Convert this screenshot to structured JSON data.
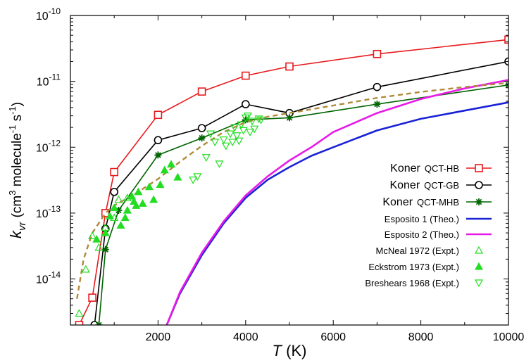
{
  "chart_data": {
    "type": "line",
    "title": "",
    "xlabel": "T (K)",
    "ylabel": "k_vr (cm3 molecule-1 s-1)",
    "xlabel_parts": {
      "symbol": "T",
      "unit": "(K)"
    },
    "ylabel_parts": {
      "symbol": "k",
      "subscript": "vr",
      "unit_open": "(cm",
      "sup1": "3",
      "mid": " molecule",
      "sup2": "-1",
      "mid2": " s",
      "sup3": "-1",
      "unit_close": ")"
    },
    "xlim": [
      0,
      10000
    ],
    "ylim": [
      2e-15,
      1e-10
    ],
    "yscale": "log",
    "grid": false,
    "legend_position": "right",
    "x_ticks": [
      2000,
      4000,
      6000,
      8000,
      10000
    ],
    "x_tick_labels": [
      "2000",
      "4000",
      "6000",
      "8000",
      "10000"
    ],
    "y_tick_labels": [
      {
        "value": 1e-10,
        "mantissa": "10",
        "exponent": "-10"
      },
      {
        "value": 1e-11,
        "mantissa": "10",
        "exponent": "-11"
      },
      {
        "value": 1e-12,
        "mantissa": "10",
        "exponent": "-12"
      },
      {
        "value": 1e-13,
        "mantissa": "10",
        "exponent": "-13"
      },
      {
        "value": 1e-14,
        "mantissa": "10",
        "exponent": "-14"
      }
    ],
    "series": [
      {
        "name": "Koner QCT-HB",
        "name_main": "Koner",
        "name_tag": "QCT-HB",
        "kind": "line-marker",
        "color": "#e8191c",
        "marker": "open-square",
        "x": [
          200,
          500,
          800,
          1000,
          2000,
          3000,
          4000,
          5000,
          7000,
          10000
        ],
        "y": [
          2e-15,
          5.2e-15,
          1e-13,
          4.2e-13,
          3.1e-12,
          7e-12,
          1.22e-11,
          1.68e-11,
          2.6e-11,
          4.3e-11
        ]
      },
      {
        "name": "Koner QCT-GB",
        "name_main": "Koner",
        "name_tag": "QCT-GB",
        "kind": "line-marker",
        "color": "#000000",
        "marker": "open-circle",
        "x": [
          550,
          800,
          1000,
          2000,
          3000,
          4000,
          5000,
          7000,
          10000
        ],
        "y": [
          2e-15,
          5.8e-14,
          2.1e-13,
          1.28e-12,
          1.95e-12,
          4.5e-12,
          3.3e-12,
          8.2e-12,
          2e-11
        ]
      },
      {
        "name": "Koner QCT-MHB",
        "name_main": "Koner",
        "name_tag": "QCT-MHB",
        "kind": "line-marker",
        "color": "#006400",
        "marker": "asterisk",
        "x": [
          650,
          800,
          1100,
          2000,
          3000,
          4000,
          5000,
          7000,
          10000
        ],
        "y": [
          2e-15,
          2.8e-14,
          1.1e-13,
          7.6e-13,
          1.38e-12,
          2.6e-12,
          2.8e-12,
          4.5e-12,
          8.8e-12
        ]
      },
      {
        "name": "Esposito 1 (Theo.)",
        "kind": "line",
        "color": "#1a22d6",
        "marker": "none",
        "x": [
          2200,
          2500,
          3000,
          3500,
          4000,
          4500,
          5000,
          5500,
          6000,
          7000,
          8000,
          9000,
          10000
        ],
        "y": [
          2e-15,
          6e-15,
          2.3e-14,
          7e-14,
          1.7e-13,
          3.2e-13,
          5e-13,
          7.4e-13,
          1e-12,
          1.8e-12,
          2.7e-12,
          3.6e-12,
          4.8e-12
        ]
      },
      {
        "name": "Esposito 2 (Theo.)",
        "kind": "line",
        "color": "#e81ae8",
        "marker": "none",
        "x": [
          2200,
          2500,
          3000,
          3500,
          4000,
          4500,
          5000,
          5500,
          6000,
          7000,
          8000,
          9000,
          10000
        ],
        "y": [
          2e-15,
          6.3e-15,
          2.5e-14,
          7.5e-14,
          1.85e-13,
          3.6e-13,
          6.3e-13,
          1e-12,
          1.7e-12,
          3.3e-12,
          5.4e-12,
          7.8e-12,
          1.05e-11
        ]
      },
      {
        "name": "",
        "kind": "dashed",
        "color": "#b08a3a",
        "marker": "none",
        "x": [
          150,
          300,
          500,
          800,
          1000,
          1500,
          2000,
          2500,
          3000,
          3500,
          4000,
          4500,
          5000,
          6000,
          7000,
          8000,
          9000,
          10000
        ],
        "y": [
          5e-15,
          2e-14,
          5e-14,
          1e-13,
          1.3e-13,
          2e-13,
          3.3e-13,
          6e-13,
          1.05e-12,
          1.7e-12,
          2.4e-12,
          2.9e-12,
          3.3e-12,
          4.3e-12,
          5.6e-12,
          6.9e-12,
          8.2e-12,
          9.5e-12
        ]
      },
      {
        "name": "McNeal 1972 (Expt.)",
        "kind": "scatter",
        "color": "#22dd22",
        "marker": "open-triangle-up",
        "x": [
          200,
          350,
          500,
          650,
          800,
          1000,
          1100,
          1300
        ],
        "y": [
          3e-15,
          1.4e-14,
          4.5e-14,
          3e-14,
          6e-14,
          8.5e-14,
          1.6e-13,
          1.7e-13
        ]
      },
      {
        "name": "Eckstrom 1973 (Expt.)",
        "kind": "scatter",
        "color": "#22dd22",
        "marker": "filled-triangle-up",
        "x": [
          600,
          800,
          900,
          1000,
          1150,
          1250,
          1300,
          1400,
          1450,
          1500,
          1550,
          1650,
          1800,
          1900,
          2050,
          2150,
          2300,
          2450
        ],
        "y": [
          4e-14,
          5e-14,
          9e-14,
          1.2e-13,
          6.5e-14,
          8.5e-14,
          1.1e-13,
          1.8e-13,
          1.5e-13,
          1.3e-13,
          2.1e-13,
          1.4e-13,
          2.5e-13,
          1.6e-13,
          2.7e-13,
          4.5e-13,
          5.5e-13,
          3.5e-13
        ]
      },
      {
        "name": "Breshears 1968 (Expt.)",
        "kind": "scatter",
        "color": "#22dd22",
        "marker": "open-triangle-down",
        "x": [
          2800,
          2900,
          3100,
          3200,
          3300,
          3400,
          3500,
          3550,
          3650,
          3700,
          3750,
          3800,
          3850,
          3900,
          3950,
          4000,
          4050,
          4100,
          4150,
          4200,
          4300,
          4350
        ],
        "y": [
          3.2e-13,
          3.6e-13,
          7e-13,
          1.6e-12,
          1.2e-12,
          5.6e-13,
          1.3e-12,
          1.05e-12,
          1.6e-12,
          1.2e-12,
          2e-12,
          1.5e-12,
          1.25e-12,
          2.2e-12,
          1.8e-12,
          2.8e-12,
          3e-12,
          1.7e-12,
          2.5e-12,
          1.9e-12,
          2.7e-12,
          2.6e-12
        ]
      }
    ]
  }
}
